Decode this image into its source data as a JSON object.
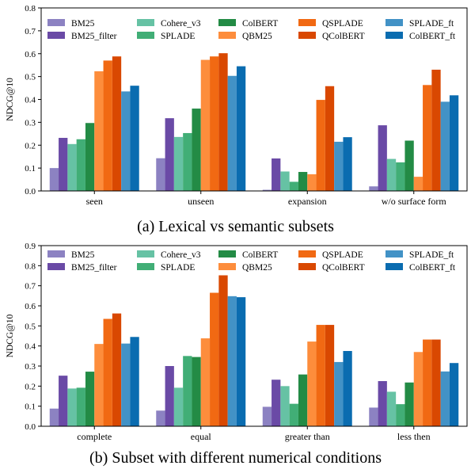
{
  "colors": {
    "BM25": "#8c82c2",
    "BM25_filter": "#6a4aa6",
    "Cohere_v3": "#66c2a4",
    "SPLADE": "#41ae76",
    "ColBERT": "#238b45",
    "QBM25": "#fd8d3c",
    "QSPLADE": "#f16913",
    "QColBERT": "#d94801",
    "SPLADE_ft": "#4292c6",
    "ColBERT_ft": "#0a6cb0"
  },
  "chart_data": [
    {
      "type": "bar",
      "caption": "(a) Lexical vs semantic subsets",
      "ylabel": "NDCG@10",
      "ylim": [
        0,
        0.8
      ],
      "yticks": [
        "0.0",
        "0.1",
        "0.2",
        "0.3",
        "0.4",
        "0.5",
        "0.6",
        "0.7",
        "0.8"
      ],
      "categories": [
        "seen",
        "unseen",
        "expansion",
        "w/o surface form"
      ],
      "legend": {
        "placement": "top",
        "columns": 5
      },
      "grid": false,
      "series": [
        {
          "name": "BM25",
          "values": [
            0.1,
            0.143,
            0.005,
            0.02
          ]
        },
        {
          "name": "BM25_filter",
          "values": [
            0.232,
            0.318,
            0.142,
            0.287
          ]
        },
        {
          "name": "Cohere_v3",
          "values": [
            0.205,
            0.236,
            0.085,
            0.14
          ]
        },
        {
          "name": "SPLADE",
          "values": [
            0.226,
            0.253,
            0.04,
            0.125
          ]
        },
        {
          "name": "ColBERT",
          "values": [
            0.297,
            0.36,
            0.083,
            0.22
          ]
        },
        {
          "name": "QBM25",
          "values": [
            0.523,
            0.573,
            0.073,
            0.062
          ]
        },
        {
          "name": "QSPLADE",
          "values": [
            0.57,
            0.588,
            0.398,
            0.463
          ]
        },
        {
          "name": "QColBERT",
          "values": [
            0.588,
            0.602,
            0.458,
            0.53
          ]
        },
        {
          "name": "SPLADE_ft",
          "values": [
            0.435,
            0.503,
            0.215,
            0.39
          ]
        },
        {
          "name": "ColBERT_ft",
          "values": [
            0.46,
            0.545,
            0.235,
            0.418
          ]
        }
      ]
    },
    {
      "type": "bar",
      "caption": "(b) Subset with different numerical conditions",
      "ylabel": "NDCG@10",
      "ylim": [
        0,
        0.9
      ],
      "yticks": [
        "0.0",
        "0.1",
        "0.2",
        "0.3",
        "0.4",
        "0.5",
        "0.6",
        "0.7",
        "0.8",
        "0.9"
      ],
      "categories": [
        "complete",
        "equal",
        "greater than",
        "less then"
      ],
      "legend": {
        "placement": "top",
        "columns": 5
      },
      "grid": false,
      "series": [
        {
          "name": "BM25",
          "values": [
            0.088,
            0.078,
            0.097,
            0.093
          ]
        },
        {
          "name": "BM25_filter",
          "values": [
            0.252,
            0.3,
            0.232,
            0.225
          ]
        },
        {
          "name": "Cohere_v3",
          "values": [
            0.188,
            0.192,
            0.2,
            0.172
          ]
        },
        {
          "name": "SPLADE",
          "values": [
            0.192,
            0.35,
            0.112,
            0.11
          ]
        },
        {
          "name": "ColBERT",
          "values": [
            0.272,
            0.345,
            0.258,
            0.218
          ]
        },
        {
          "name": "QBM25",
          "values": [
            0.41,
            0.438,
            0.422,
            0.37
          ]
        },
        {
          "name": "QSPLADE",
          "values": [
            0.535,
            0.665,
            0.505,
            0.432
          ]
        },
        {
          "name": "QColBERT",
          "values": [
            0.562,
            0.752,
            0.505,
            0.432
          ]
        },
        {
          "name": "SPLADE_ft",
          "values": [
            0.412,
            0.648,
            0.32,
            0.273
          ]
        },
        {
          "name": "ColBERT_ft",
          "values": [
            0.445,
            0.643,
            0.375,
            0.315
          ]
        }
      ]
    }
  ]
}
